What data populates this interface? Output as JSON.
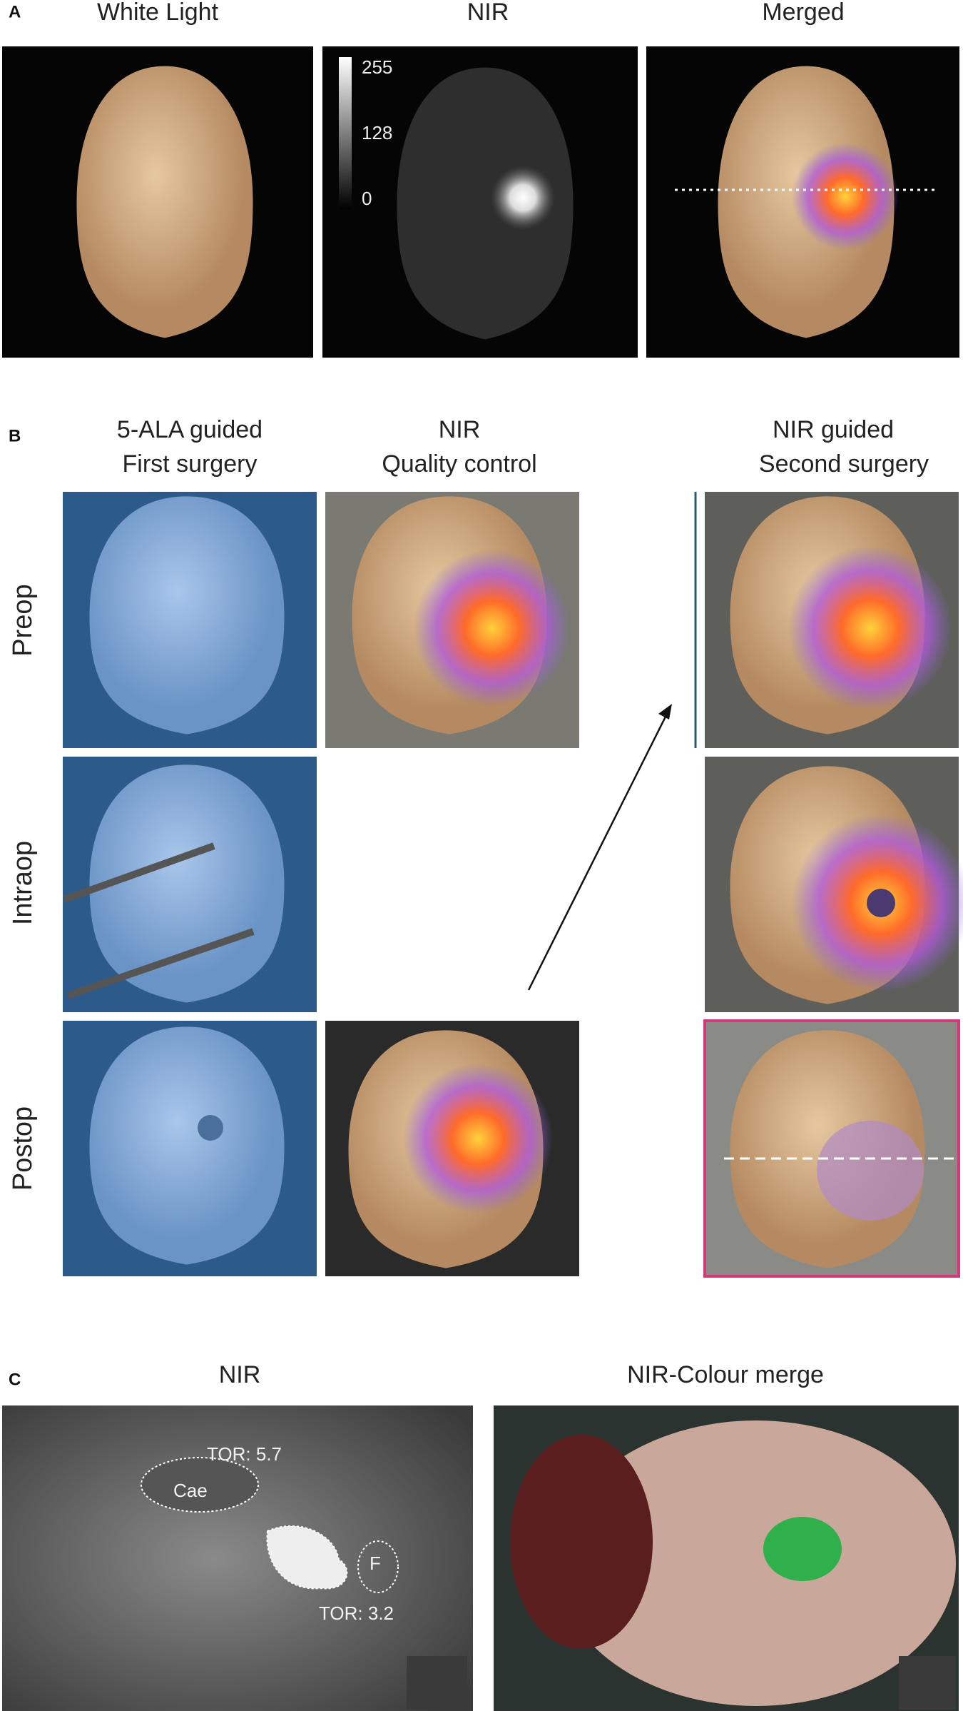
{
  "panel_a": {
    "label": "A",
    "titles": [
      "White Light",
      "NIR",
      "Merged"
    ],
    "colorbar_ticks": [
      255,
      128,
      0
    ]
  },
  "panel_b": {
    "label": "B",
    "columns": [
      {
        "line1": "5-ALA guided",
        "line2": "First surgery"
      },
      {
        "line1": "NIR",
        "line2": "Quality control"
      },
      {
        "line1": "NIR guided",
        "line2": "Second surgery"
      }
    ],
    "rows": [
      "Preop",
      "Intraop",
      "Postop"
    ]
  },
  "panel_c": {
    "label": "C",
    "titles": [
      "NIR",
      "NIR-Colour merge"
    ],
    "annotations": [
      "TOR: 5.7",
      "Cae",
      "F",
      "TOR: 3.2"
    ]
  }
}
